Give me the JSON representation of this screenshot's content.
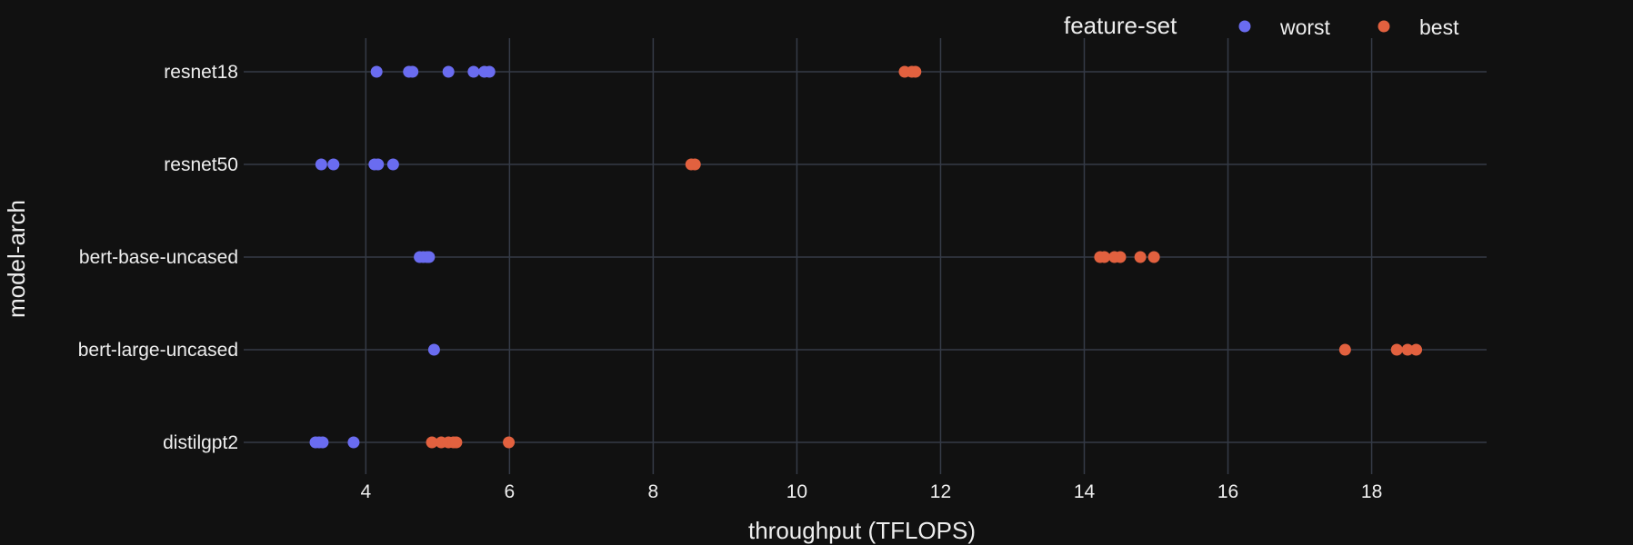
{
  "chart_data": {
    "type": "scatter",
    "title": "",
    "xlabel": "throughput (TFLOPS)",
    "ylabel": "model-arch",
    "xlim": [
      2.3,
      19.6
    ],
    "x_ticks": [
      4,
      6,
      8,
      10,
      12,
      14,
      16,
      18
    ],
    "categories": [
      "resnet18",
      "resnet50",
      "bert-base-uncased",
      "bert-large-uncased",
      "distilgpt2"
    ],
    "grid": true,
    "legend": {
      "title": "feature-set",
      "position": "top-right"
    },
    "series": [
      {
        "name": "worst",
        "color": "#6a6cf0",
        "points": [
          {
            "y": "resnet18",
            "x": 4.15
          },
          {
            "y": "resnet18",
            "x": 4.6
          },
          {
            "y": "resnet18",
            "x": 4.65
          },
          {
            "y": "resnet18",
            "x": 5.15
          },
          {
            "y": "resnet18",
            "x": 5.5
          },
          {
            "y": "resnet18",
            "x": 5.65
          },
          {
            "y": "resnet18",
            "x": 5.72
          },
          {
            "y": "resnet50",
            "x": 3.38
          },
          {
            "y": "resnet50",
            "x": 3.55
          },
          {
            "y": "resnet50",
            "x": 4.12
          },
          {
            "y": "resnet50",
            "x": 4.17
          },
          {
            "y": "resnet50",
            "x": 4.38
          },
          {
            "y": "bert-base-uncased",
            "x": 4.75
          },
          {
            "y": "bert-base-uncased",
            "x": 4.8
          },
          {
            "y": "bert-base-uncased",
            "x": 4.85
          },
          {
            "y": "bert-base-uncased",
            "x": 4.88
          },
          {
            "y": "bert-large-uncased",
            "x": 4.95
          },
          {
            "y": "distilgpt2",
            "x": 3.3
          },
          {
            "y": "distilgpt2",
            "x": 3.35
          },
          {
            "y": "distilgpt2",
            "x": 3.4
          },
          {
            "y": "distilgpt2",
            "x": 3.83
          }
        ]
      },
      {
        "name": "best",
        "color": "#e2613f",
        "points": [
          {
            "y": "resnet18",
            "x": 11.5
          },
          {
            "y": "resnet18",
            "x": 11.6
          },
          {
            "y": "resnet18",
            "x": 11.65
          },
          {
            "y": "resnet50",
            "x": 8.53
          },
          {
            "y": "resnet50",
            "x": 8.58
          },
          {
            "y": "bert-base-uncased",
            "x": 14.22
          },
          {
            "y": "bert-base-uncased",
            "x": 14.28
          },
          {
            "y": "bert-base-uncased",
            "x": 14.42
          },
          {
            "y": "bert-base-uncased",
            "x": 14.5
          },
          {
            "y": "bert-base-uncased",
            "x": 14.78
          },
          {
            "y": "bert-base-uncased",
            "x": 14.97
          },
          {
            "y": "bert-large-uncased",
            "x": 17.63
          },
          {
            "y": "bert-large-uncased",
            "x": 18.35
          },
          {
            "y": "bert-large-uncased",
            "x": 18.5
          },
          {
            "y": "bert-large-uncased",
            "x": 18.62
          },
          {
            "y": "distilgpt2",
            "x": 4.92
          },
          {
            "y": "distilgpt2",
            "x": 5.05
          },
          {
            "y": "distilgpt2",
            "x": 5.15
          },
          {
            "y": "distilgpt2",
            "x": 5.22
          },
          {
            "y": "distilgpt2",
            "x": 5.26
          },
          {
            "y": "distilgpt2",
            "x": 5.99
          }
        ]
      }
    ]
  }
}
